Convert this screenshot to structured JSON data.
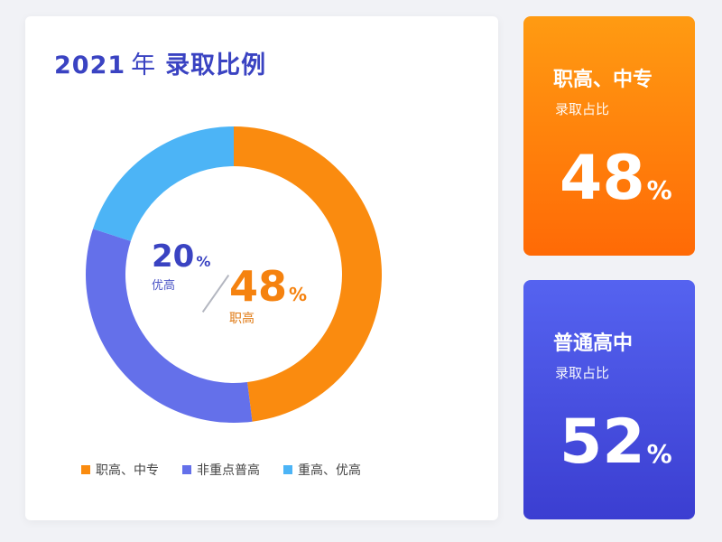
{
  "title": {
    "year": "2021",
    "year_unit": "年",
    "text": "录取比例"
  },
  "chart_data": {
    "type": "pie",
    "categories": [
      "职高、中专",
      "非重点普高",
      "重高、优高"
    ],
    "values": [
      48,
      32,
      20
    ],
    "colors": [
      "#fa8b0f",
      "#6470ea",
      "#4cb4f6"
    ],
    "legend_position": "bottom",
    "center_labels": {
      "primary": {
        "value": "48",
        "unit": "%",
        "label": "职高"
      },
      "secondary": {
        "value": "20",
        "unit": "%",
        "label": "优高"
      }
    }
  },
  "legend": [
    {
      "label": "职高、中专",
      "color": "#fa8b0f"
    },
    {
      "label": "非重点普高",
      "color": "#6470ea"
    },
    {
      "label": "重高、优高",
      "color": "#4cb4f6"
    }
  ],
  "cards": {
    "vocational": {
      "title": "职高、中专",
      "subtitle": "录取占比",
      "value": "48",
      "unit": "%",
      "color": "#ff7a0a"
    },
    "general": {
      "title": "普通高中",
      "subtitle": "录取占比",
      "value": "52",
      "unit": "%",
      "color": "#4a50e0"
    }
  }
}
